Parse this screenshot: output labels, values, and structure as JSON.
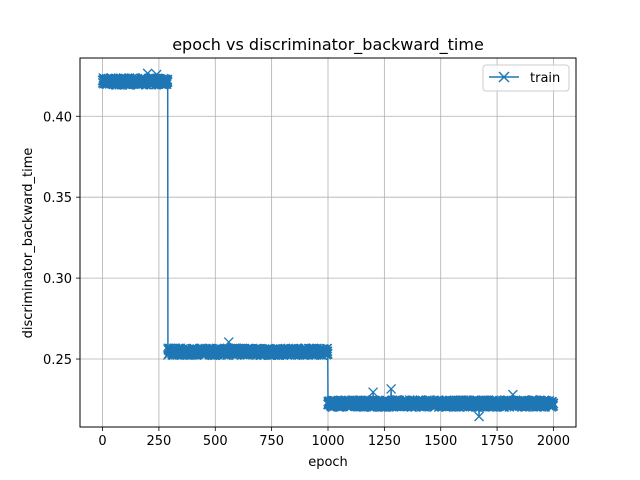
{
  "chart_data": {
    "type": "line",
    "title": "epoch vs discriminator_backward_time",
    "xlabel": "epoch",
    "ylabel": "discriminator_backward_time",
    "xlim": [
      -100,
      2100
    ],
    "ylim": [
      0.208,
      0.436
    ],
    "xticks": [
      0,
      250,
      500,
      750,
      1000,
      1250,
      1500,
      1750,
      2000
    ],
    "yticks": [
      0.25,
      0.3,
      0.35,
      0.4
    ],
    "ytick_labels": [
      "0.25",
      "0.30",
      "0.35",
      "0.40"
    ],
    "grid": true,
    "legend": {
      "position": "top-right",
      "entries": [
        "train"
      ]
    },
    "series": [
      {
        "name": "train",
        "color": "#1f77b4",
        "marker": "x",
        "segments": [
          {
            "x_start": 0,
            "x_end": 290,
            "mean": 0.4215,
            "noise": 0.0022
          },
          {
            "x_start": 290,
            "x_end": 1000,
            "mean": 0.2545,
            "noise": 0.0022
          },
          {
            "x_start": 1000,
            "x_end": 2000,
            "mean": 0.2225,
            "noise": 0.0022
          }
        ],
        "outliers": [
          {
            "x": 200,
            "y": 0.4265
          },
          {
            "x": 240,
            "y": 0.4258
          },
          {
            "x": 560,
            "y": 0.2605
          },
          {
            "x": 1280,
            "y": 0.2315
          },
          {
            "x": 1200,
            "y": 0.2295
          },
          {
            "x": 1670,
            "y": 0.2145
          },
          {
            "x": 1820,
            "y": 0.228
          }
        ]
      }
    ]
  }
}
